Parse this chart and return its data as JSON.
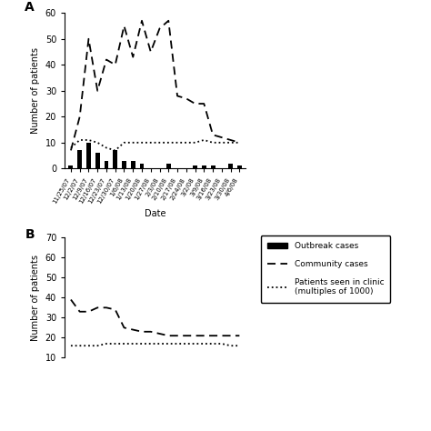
{
  "dates": [
    "11/25/07",
    "12/2/07",
    "12/9/07",
    "12/16/07",
    "12/23/07",
    "12/30/07",
    "1/6/08",
    "1/13/08",
    "1/20/08",
    "1/27/08",
    "2/3/08",
    "2/10/08",
    "2/17/08",
    "2/24/08",
    "3/2/08",
    "3/9/08",
    "3/16/08",
    "3/23/08",
    "3/30/08",
    "4/6/08"
  ],
  "outbreak_cases": [
    1,
    7,
    10,
    6,
    3,
    7,
    3,
    3,
    2,
    0,
    0,
    2,
    0,
    0,
    1,
    1,
    1,
    0,
    2,
    1
  ],
  "community_cases": [
    7,
    20,
    50,
    30,
    42,
    40,
    55,
    43,
    57,
    45,
    54,
    57,
    28,
    27,
    25,
    25,
    13,
    12,
    11,
    10
  ],
  "clinic_patients_A": [
    8,
    11,
    11,
    10,
    8,
    7,
    10,
    10,
    10,
    10,
    10,
    10,
    10,
    10,
    10,
    11,
    10,
    10,
    10,
    10
  ],
  "community_cases_B": [
    39,
    33,
    33,
    35,
    35,
    34,
    25,
    24,
    23,
    23,
    22,
    21,
    21,
    21,
    21,
    21,
    21,
    21,
    21,
    21
  ],
  "clinic_patients_B": [
    16,
    16,
    16,
    16,
    17,
    17,
    17,
    17,
    17,
    17,
    17,
    17,
    17,
    17,
    17,
    17,
    17,
    17,
    16,
    16
  ],
  "ylabel": "Number of patients",
  "xlabel": "Date",
  "panel_A_label": "A",
  "panel_B_label": "B",
  "ylim_A": [
    0,
    60
  ],
  "yticks_A": [
    0,
    10,
    20,
    30,
    40,
    50,
    60
  ],
  "ylim_B": [
    10,
    70
  ],
  "yticks_B": [
    10,
    20,
    30,
    40,
    50,
    60,
    70
  ],
  "bar_color": "#000000",
  "community_color": "#000000",
  "clinic_color": "#000000",
  "background_color": "#ffffff",
  "legend_labels": [
    "Outbreak cases",
    "Community cases",
    "Patients seen in clinic\n(multiples of 1000)"
  ]
}
